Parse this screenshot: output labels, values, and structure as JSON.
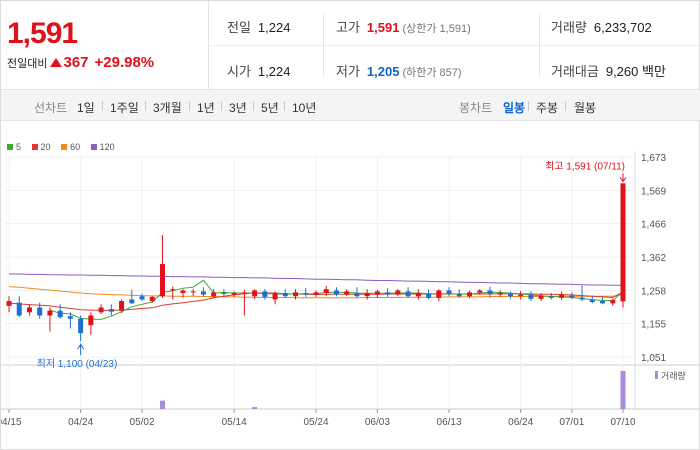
{
  "header": {
    "current_price": "1,591",
    "change_label": "전일대비",
    "change_amount": "367",
    "change_percent": "+29.98%",
    "stats": {
      "prev_close_label": "전일",
      "prev_close": "1,224",
      "open_label": "시가",
      "open": "1,224",
      "high_label": "고가",
      "high": "1,591",
      "upper_limit": "(상한가 1,591)",
      "low_label": "저가",
      "low": "1,205",
      "lower_limit": "(하한가 857)",
      "volume_label": "거래량",
      "volume": "6,233,702",
      "amount_label": "거래대금",
      "amount": "9,260 백만"
    }
  },
  "tabs": {
    "line_label": "선차트",
    "line_periods": [
      "1일",
      "1주일",
      "3개월",
      "1년",
      "3년",
      "5년",
      "10년"
    ],
    "candle_label": "봉차트",
    "candle_periods": [
      "일봉",
      "주봉",
      "월봉"
    ],
    "candle_active": "일봉"
  },
  "chart_data": {
    "type": "candlestick",
    "legend": [
      {
        "label": "5",
        "color": "#3aaa35"
      },
      {
        "label": "20",
        "color": "#e03a2f"
      },
      {
        "label": "60",
        "color": "#f08c1e"
      },
      {
        "label": "120",
        "color": "#8e5dc6"
      }
    ],
    "y_ticks": [
      "1,673",
      "1,569",
      "1,466",
      "1,362",
      "1,258",
      "1,155",
      "1,051"
    ],
    "y_range": [
      1051,
      1673
    ],
    "x_ticks": [
      "04/15",
      "04/24",
      "05/02",
      "05/14",
      "05/24",
      "06/03",
      "06/13",
      "06/24",
      "07/01",
      "07/10"
    ],
    "annotation_high": "최고 1,591 (07/11)",
    "annotation_low": "최저 1,100 (04/23)",
    "volume_label": "거래량",
    "candles": [
      {
        "o": 1210,
        "h": 1240,
        "l": 1190,
        "c": 1225
      },
      {
        "o": 1220,
        "h": 1240,
        "l": 1175,
        "c": 1180
      },
      {
        "o": 1190,
        "h": 1215,
        "l": 1180,
        "c": 1205
      },
      {
        "o": 1205,
        "h": 1220,
        "l": 1170,
        "c": 1180
      },
      {
        "o": 1180,
        "h": 1205,
        "l": 1130,
        "c": 1195
      },
      {
        "o": 1195,
        "h": 1215,
        "l": 1170,
        "c": 1175
      },
      {
        "o": 1178,
        "h": 1190,
        "l": 1140,
        "c": 1170
      },
      {
        "o": 1170,
        "h": 1180,
        "l": 1100,
        "c": 1125
      },
      {
        "o": 1150,
        "h": 1190,
        "l": 1120,
        "c": 1180
      },
      {
        "o": 1190,
        "h": 1215,
        "l": 1185,
        "c": 1205
      },
      {
        "o": 1200,
        "h": 1215,
        "l": 1180,
        "c": 1192
      },
      {
        "o": 1195,
        "h": 1230,
        "l": 1188,
        "c": 1225
      },
      {
        "o": 1230,
        "h": 1260,
        "l": 1215,
        "c": 1218
      },
      {
        "o": 1240,
        "h": 1248,
        "l": 1225,
        "c": 1230
      },
      {
        "o": 1225,
        "h": 1240,
        "l": 1220,
        "c": 1238
      },
      {
        "o": 1240,
        "h": 1430,
        "l": 1235,
        "c": 1340
      },
      {
        "o": 1260,
        "h": 1270,
        "l": 1230,
        "c": 1262
      },
      {
        "o": 1250,
        "h": 1262,
        "l": 1235,
        "c": 1258
      },
      {
        "o": 1252,
        "h": 1262,
        "l": 1240,
        "c": 1255
      },
      {
        "o": 1255,
        "h": 1268,
        "l": 1240,
        "c": 1245
      },
      {
        "o": 1240,
        "h": 1262,
        "l": 1235,
        "c": 1252
      },
      {
        "o": 1250,
        "h": 1262,
        "l": 1240,
        "c": 1248
      },
      {
        "o": 1245,
        "h": 1255,
        "l": 1238,
        "c": 1250
      },
      {
        "o": 1250,
        "h": 1260,
        "l": 1180,
        "c": 1252
      },
      {
        "o": 1240,
        "h": 1262,
        "l": 1232,
        "c": 1258
      },
      {
        "o": 1255,
        "h": 1262,
        "l": 1230,
        "c": 1238
      },
      {
        "o": 1230,
        "h": 1255,
        "l": 1215,
        "c": 1250
      },
      {
        "o": 1250,
        "h": 1262,
        "l": 1235,
        "c": 1240
      },
      {
        "o": 1240,
        "h": 1262,
        "l": 1230,
        "c": 1252
      },
      {
        "o": 1250,
        "h": 1265,
        "l": 1238,
        "c": 1245
      },
      {
        "o": 1245,
        "h": 1258,
        "l": 1238,
        "c": 1252
      },
      {
        "o": 1250,
        "h": 1272,
        "l": 1240,
        "c": 1262
      },
      {
        "o": 1258,
        "h": 1268,
        "l": 1240,
        "c": 1245
      },
      {
        "o": 1245,
        "h": 1262,
        "l": 1240,
        "c": 1255
      },
      {
        "o": 1250,
        "h": 1268,
        "l": 1235,
        "c": 1240
      },
      {
        "o": 1240,
        "h": 1262,
        "l": 1230,
        "c": 1250
      },
      {
        "o": 1245,
        "h": 1260,
        "l": 1235,
        "c": 1255
      },
      {
        "o": 1252,
        "h": 1265,
        "l": 1238,
        "c": 1245
      },
      {
        "o": 1245,
        "h": 1262,
        "l": 1240,
        "c": 1258
      },
      {
        "o": 1255,
        "h": 1268,
        "l": 1235,
        "c": 1240
      },
      {
        "o": 1240,
        "h": 1262,
        "l": 1230,
        "c": 1250
      },
      {
        "o": 1248,
        "h": 1262,
        "l": 1230,
        "c": 1235
      },
      {
        "o": 1235,
        "h": 1262,
        "l": 1225,
        "c": 1258
      },
      {
        "o": 1258,
        "h": 1268,
        "l": 1240,
        "c": 1248
      },
      {
        "o": 1248,
        "h": 1262,
        "l": 1235,
        "c": 1240
      },
      {
        "o": 1240,
        "h": 1258,
        "l": 1235,
        "c": 1252
      },
      {
        "o": 1252,
        "h": 1262,
        "l": 1245,
        "c": 1258
      },
      {
        "o": 1258,
        "h": 1270,
        "l": 1235,
        "c": 1248
      },
      {
        "o": 1245,
        "h": 1258,
        "l": 1238,
        "c": 1250
      },
      {
        "o": 1248,
        "h": 1255,
        "l": 1232,
        "c": 1240
      },
      {
        "o": 1240,
        "h": 1256,
        "l": 1230,
        "c": 1245
      },
      {
        "o": 1245,
        "h": 1255,
        "l": 1225,
        "c": 1232
      },
      {
        "o": 1232,
        "h": 1250,
        "l": 1225,
        "c": 1242
      },
      {
        "o": 1240,
        "h": 1250,
        "l": 1230,
        "c": 1235
      },
      {
        "o": 1235,
        "h": 1255,
        "l": 1228,
        "c": 1245
      },
      {
        "o": 1242,
        "h": 1252,
        "l": 1232,
        "c": 1236
      },
      {
        "o": 1236,
        "h": 1272,
        "l": 1225,
        "c": 1230
      },
      {
        "o": 1230,
        "h": 1242,
        "l": 1218,
        "c": 1222
      },
      {
        "o": 1225,
        "h": 1236,
        "l": 1215,
        "c": 1218
      },
      {
        "o": 1218,
        "h": 1232,
        "l": 1210,
        "c": 1228
      },
      {
        "o": 1224,
        "h": 1591,
        "l": 1205,
        "c": 1591
      }
    ],
    "volumes": [
      0,
      0,
      0,
      0,
      0,
      0,
      0,
      0,
      0,
      0,
      0,
      0,
      0,
      0,
      0,
      0.22,
      0,
      0,
      0,
      0,
      0,
      0,
      0,
      0,
      0.05,
      0,
      0,
      0,
      0,
      0,
      0,
      0,
      0,
      0,
      0,
      0,
      0,
      0,
      0,
      0,
      0,
      0,
      0,
      0,
      0,
      0,
      0,
      0,
      0,
      0,
      0,
      0,
      0,
      0,
      0,
      0,
      0,
      0,
      0,
      0,
      1.0
    ],
    "ma": {
      "5": [
        null,
        null,
        null,
        null,
        1197,
        1187,
        1185,
        1171,
        1169,
        1168,
        1178,
        1192,
        1207,
        1215,
        1222,
        1252,
        1257,
        1265,
        1268,
        1290,
        1250,
        1252,
        1250,
        1250,
        1250,
        1248,
        1248,
        1246,
        1248,
        1247,
        1248,
        1252,
        1252,
        1252,
        1250,
        1249,
        1249,
        1249,
        1250,
        1250,
        1250,
        1248,
        1248,
        1248,
        1247,
        1246,
        1250,
        1252,
        1252,
        1249,
        1247,
        1244,
        1241,
        1239,
        1238,
        1236,
        1233,
        1229,
        1227,
        1226,
        1255
      ],
      "20": [
        1218,
        1216,
        1214,
        1212,
        1210,
        1206,
        1202,
        1198,
        1197,
        1196,
        1196,
        1197,
        1199,
        1202,
        1204,
        1212,
        1216,
        1220,
        1224,
        1228,
        1235,
        1240,
        1244,
        1248,
        1250,
        1250,
        1250,
        1248,
        1247,
        1246,
        1245,
        1246,
        1246,
        1246,
        1246,
        1246,
        1246,
        1247,
        1247,
        1247,
        1247,
        1247,
        1247,
        1247,
        1247,
        1247,
        1247,
        1247,
        1248,
        1248,
        1248,
        1247,
        1246,
        1246,
        1245,
        1244,
        1242,
        1240,
        1238,
        1236,
        1253
      ],
      "60": [
        1270,
        1268,
        1265,
        1262,
        1259,
        1256,
        1253,
        1250,
        1248,
        1246,
        1245,
        1244,
        1243,
        1242,
        1241,
        1241,
        1240,
        1240,
        1240,
        1239,
        1239,
        1238,
        1238,
        1237,
        1237,
        1236,
        1236,
        1236,
        1235,
        1235,
        1235,
        1235,
        1235,
        1235,
        1235,
        1236,
        1236,
        1236,
        1236,
        1237,
        1237,
        1237,
        1237,
        1238,
        1238,
        1238,
        1238,
        1239,
        1239,
        1239,
        1239,
        1239,
        1239,
        1240,
        1240,
        1240,
        1240,
        1240,
        1240,
        1240,
        1245
      ],
      "120": [
        1309,
        1309,
        1308,
        1308,
        1307,
        1307,
        1306,
        1306,
        1305,
        1305,
        1304,
        1304,
        1303,
        1303,
        1302,
        1302,
        1301,
        1301,
        1300,
        1300,
        1299,
        1299,
        1298,
        1298,
        1297,
        1297,
        1296,
        1295,
        1295,
        1294,
        1293,
        1293,
        1292,
        1291,
        1291,
        1290,
        1289,
        1289,
        1288,
        1287,
        1287,
        1286,
        1285,
        1285,
        1284,
        1283,
        1283,
        1282,
        1281,
        1281,
        1280,
        1279,
        1279,
        1278,
        1277,
        1277,
        1276,
        1275,
        1275,
        1274,
        1274
      ]
    }
  }
}
